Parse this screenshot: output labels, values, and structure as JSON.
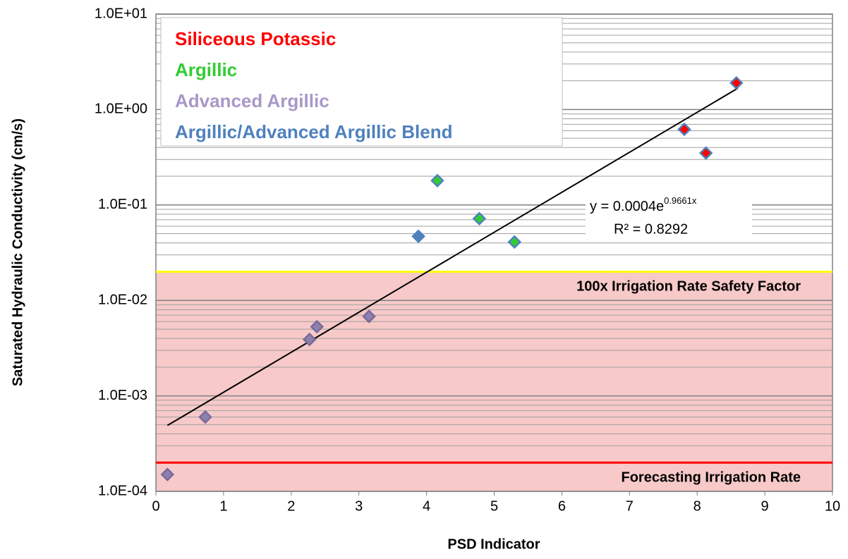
{
  "chart_data": {
    "type": "scatter",
    "y_label": "Saturated Hydraulic  Conductivity (cm/s)",
    "x_label": "PSD Indicator",
    "y_log": true,
    "grid": true,
    "xlim": [
      0,
      10
    ],
    "xticks": [
      0,
      1,
      2,
      3,
      4,
      5,
      6,
      7,
      8,
      9,
      10
    ],
    "ylim": [
      0.0001,
      10
    ],
    "yticks": [
      {
        "value": 0.0001,
        "label": "1.0E-04"
      },
      {
        "value": 0.001,
        "label": "1.0E-03"
      },
      {
        "value": 0.01,
        "label": "1.0E-02"
      },
      {
        "value": 0.1,
        "label": "1.0E-01"
      },
      {
        "value": 1,
        "label": "1.0E+00"
      },
      {
        "value": 10,
        "label": "1.0E+01"
      }
    ],
    "legend_position": "upper-left",
    "series": [
      {
        "name": "Siliceous Potassic",
        "color": "#ff0000",
        "x": [
          8.58,
          7.81,
          8.13
        ],
        "values": [
          1.9,
          0.62,
          0.35
        ]
      },
      {
        "name": "Argillic",
        "color": "#33cc33",
        "x": [
          4.16,
          4.78,
          5.3
        ],
        "values": [
          0.18,
          0.072,
          0.041
        ]
      },
      {
        "name": "Advanced Argillic",
        "color": "#a898c8",
        "x": [
          0.17,
          0.73,
          2.27,
          2.38,
          3.15
        ],
        "values": [
          0.00015,
          0.0006,
          0.0039,
          0.0053,
          0.0068
        ]
      },
      {
        "name": "Argillic/Advanced Argillic Blend",
        "color": "#4f81bd",
        "x": [
          3.88
        ],
        "values": [
          0.047
        ]
      }
    ],
    "trendline": {
      "x": [
        0.17,
        8.6
      ],
      "values": [
        0.00049,
        1.67
      ],
      "color": "#000000",
      "equation": "y = 0.0004e",
      "exponent": "0.9661x",
      "r2": "R² = 0.8292"
    },
    "reference_lines": [
      {
        "value": 0.02,
        "color": "#ffff00",
        "label": "100x Irrigation Rate Safety Factor",
        "shade_below": "#f7c9c9"
      },
      {
        "value": 0.0002,
        "color": "#ff0000",
        "label": "Forecasting Irrigation Rate"
      }
    ]
  }
}
